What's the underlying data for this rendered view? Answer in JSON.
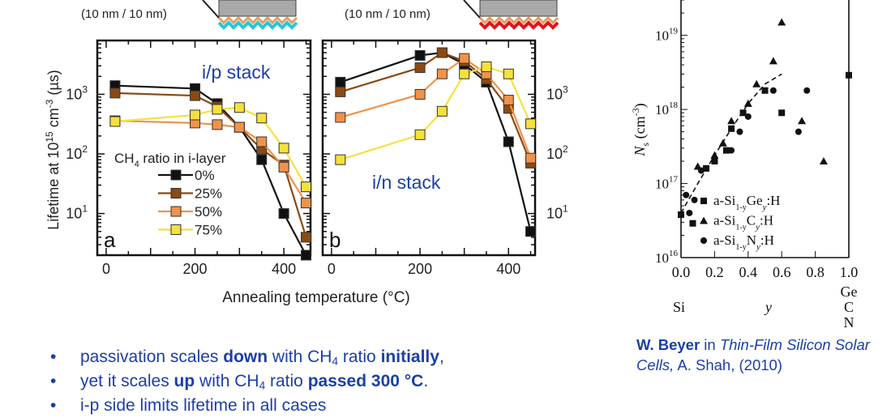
{
  "header": {
    "left_layer_label": "(10 nm / 10 nm)",
    "right_layer_label": "(10 nm / 10 nm)"
  },
  "colors": {
    "black": "#111111",
    "brown": "#8b4a13",
    "orange": "#f0924a",
    "yellow": "#f6e03c",
    "text_blue": "#1a3fa8",
    "left_stack_wave": "#29c6d8",
    "right_stack_wave": "#e0151b"
  },
  "chart_data": [
    {
      "type": "line",
      "panel_letter": "a",
      "annotation": "i/p stack",
      "ylabel_parts": {
        "pre": "Lifetime at 10",
        "exp1": "15",
        "mid": " cm",
        "exp2": "-3",
        "post": " (µs)"
      },
      "yscale": "log",
      "ylim": [
        2,
        8000
      ],
      "xlim": [
        -20,
        460
      ],
      "x_ticks": [
        0,
        200,
        400
      ],
      "y_tick_labels": [
        {
          "base": "10",
          "exp": "1",
          "value": 10
        },
        {
          "base": "10",
          "exp": "2",
          "value": 100
        },
        {
          "base": "10",
          "exp": "3",
          "value": 1000
        }
      ],
      "legend_title_parts": {
        "pre": "CH",
        "sub": "4",
        "post": " ratio in i-layer"
      },
      "series": [
        {
          "name": "0%",
          "color_key": "black",
          "points": [
            [
              20,
              1400
            ],
            [
              200,
              1250
            ],
            [
              250,
              700
            ],
            [
              300,
              280
            ],
            [
              350,
              80
            ],
            [
              400,
              10
            ],
            [
              450,
              2
            ]
          ]
        },
        {
          "name": "25%",
          "color_key": "brown",
          "points": [
            [
              20,
              1050
            ],
            [
              200,
              950
            ],
            [
              250,
              620
            ],
            [
              300,
              280
            ],
            [
              350,
              120
            ],
            [
              400,
              65
            ],
            [
              450,
              4
            ]
          ]
        },
        {
          "name": "50%",
          "color_key": "orange",
          "points": [
            [
              20,
              360
            ],
            [
              200,
              330
            ],
            [
              250,
              310
            ],
            [
              300,
              280
            ],
            [
              350,
              160
            ],
            [
              400,
              60
            ],
            [
              450,
              15
            ]
          ]
        },
        {
          "name": "75%",
          "color_key": "yellow",
          "points": [
            [
              20,
              350
            ],
            [
              200,
              450
            ],
            [
              250,
              560
            ],
            [
              300,
              600
            ],
            [
              350,
              400
            ],
            [
              400,
              125
            ],
            [
              450,
              28
            ]
          ]
        }
      ]
    },
    {
      "type": "line",
      "panel_letter": "b",
      "annotation": "i/n stack",
      "yscale": "log",
      "ylim": [
        2,
        8000
      ],
      "xlim": [
        -20,
        460
      ],
      "x_ticks": [
        0,
        200,
        400
      ],
      "y_tick_labels": [
        {
          "base": "10",
          "exp": "1",
          "value": 10
        },
        {
          "base": "10",
          "exp": "2",
          "value": 100
        },
        {
          "base": "10",
          "exp": "3",
          "value": 1000
        }
      ],
      "xlabel": "Annealing temperature (°C)",
      "series": [
        {
          "name": "0%",
          "color_key": "black",
          "points": [
            [
              20,
              1600
            ],
            [
              200,
              4500
            ],
            [
              250,
              5000
            ],
            [
              300,
              3200
            ],
            [
              350,
              1600
            ],
            [
              400,
              160
            ],
            [
              450,
              5
            ]
          ]
        },
        {
          "name": "25%",
          "color_key": "brown",
          "points": [
            [
              20,
              1100
            ],
            [
              200,
              2800
            ],
            [
              250,
              5000
            ],
            [
              300,
              3600
            ],
            [
              350,
              1800
            ],
            [
              400,
              580
            ],
            [
              450,
              70
            ]
          ]
        },
        {
          "name": "50%",
          "color_key": "orange",
          "points": [
            [
              20,
              410
            ],
            [
              200,
              1000
            ],
            [
              250,
              2200
            ],
            [
              300,
              4000
            ],
            [
              350,
              2200
            ],
            [
              400,
              800
            ],
            [
              450,
              85
            ]
          ]
        },
        {
          "name": "75%",
          "color_key": "yellow",
          "points": [
            [
              20,
              80
            ],
            [
              200,
              210
            ],
            [
              250,
              520
            ],
            [
              300,
              2200
            ],
            [
              350,
              2900
            ],
            [
              400,
              2200
            ],
            [
              450,
              320
            ]
          ]
        }
      ]
    },
    {
      "type": "scatter",
      "ylabel_parts": {
        "N": "N",
        "s": "s",
        "unit_pre": " (cm",
        "exp": "-3",
        "unit_post": ")"
      },
      "yscale": "log",
      "ylim": [
        10000000000000000,
        30000000000000000000
      ],
      "xlim": [
        0,
        1.0
      ],
      "x_tick_labels": [
        "0.0",
        "0.2",
        "0.4",
        "0.6",
        "0.8",
        "1.0"
      ],
      "y_tick_labels": [
        {
          "base": "10",
          "exp": "16",
          "value": 1e+16
        },
        {
          "base": "10",
          "exp": "17",
          "value": 1e+17
        },
        {
          "base": "10",
          "exp": "18",
          "value": 1e+18
        },
        {
          "base": "10",
          "exp": "19",
          "value": 1e+19
        }
      ],
      "xaxis_left": "Si",
      "xaxis_mid": "y",
      "xaxis_right": [
        "Ge",
        "C",
        "N"
      ],
      "series": [
        {
          "legend_parts": [
            "a-Si",
            "1-y",
            "Ge",
            "y",
            ":H"
          ],
          "marker": "square",
          "points": [
            [
              0.0,
              3.8e+16
            ],
            [
              0.07,
              2.9e+16
            ],
            [
              0.15,
              1.6e+17
            ],
            [
              0.2,
              2e+17
            ],
            [
              0.27,
              2.8e+17
            ],
            [
              0.3,
              5.5e+17
            ],
            [
              0.37,
              9e+17
            ],
            [
              0.5,
              1.8e+18
            ],
            [
              0.6,
              9e+17
            ],
            [
              1.0,
              2.9e+18
            ]
          ]
        },
        {
          "legend_parts": [
            "a-Si",
            "1-y",
            "C",
            "y",
            ":H"
          ],
          "marker": "triangle",
          "points": [
            [
              0.1,
              1.7e+17
            ],
            [
              0.2,
              2.4e+17
            ],
            [
              0.25,
              3.5e+17
            ],
            [
              0.3,
              7e+17
            ],
            [
              0.4,
              1.2e+18
            ],
            [
              0.45,
              2.2e+18
            ],
            [
              0.55,
              4.5e+18
            ],
            [
              0.6,
              1.5e+19
            ],
            [
              0.72,
              7e+17
            ],
            [
              0.85,
              2e+17
            ]
          ]
        },
        {
          "legend_parts": [
            "a-Si",
            "1-y",
            "N",
            "y",
            ":H"
          ],
          "marker": "circle",
          "points": [
            [
              0.03,
              7e+16
            ],
            [
              0.05,
              4e+16
            ],
            [
              0.08,
              6e+16
            ],
            [
              0.12,
              1.5e+17
            ],
            [
              0.2,
              2e+17
            ],
            [
              0.3,
              2.8e+17
            ],
            [
              0.35,
              5e+17
            ],
            [
              0.4,
              8e+17
            ],
            [
              0.55,
              1.8e+18
            ],
            [
              0.7,
              5e+17
            ],
            [
              0.75,
              1.8e+18
            ]
          ]
        }
      ],
      "fit_curve": [
        [
          0.0,
          4e+16
        ],
        [
          0.1,
          1e+17
        ],
        [
          0.2,
          2.4e+17
        ],
        [
          0.3,
          5.5e+17
        ],
        [
          0.4,
          1.2e+18
        ],
        [
          0.5,
          2.2e+18
        ],
        [
          0.6,
          3e+18
        ]
      ]
    }
  ],
  "bullets": [
    {
      "segments": [
        {
          "t": "passivation scales "
        },
        {
          "t": "down",
          "b": true
        },
        {
          "t": " with CH"
        },
        {
          "t": "4",
          "sub": true
        },
        {
          "t": " ratio "
        },
        {
          "t": "initially",
          "b": true
        },
        {
          "t": ","
        }
      ]
    },
    {
      "segments": [
        {
          "t": "yet it scales "
        },
        {
          "t": "up",
          "b": true
        },
        {
          "t": " with CH"
        },
        {
          "t": "4",
          "sub": true
        },
        {
          "t": " ratio "
        },
        {
          "t": "passed 300 °C",
          "b": true
        },
        {
          "t": "."
        }
      ]
    },
    {
      "segments": [
        {
          "t": "i-p side limits lifetime in all cases"
        }
      ]
    }
  ],
  "bullet_glyph": "•",
  "credit": {
    "author": "W. Beyer",
    "in": " in ",
    "title": "Thin-Film Silicon Solar Cells,",
    "rest": " A. Shah, (2010)"
  }
}
